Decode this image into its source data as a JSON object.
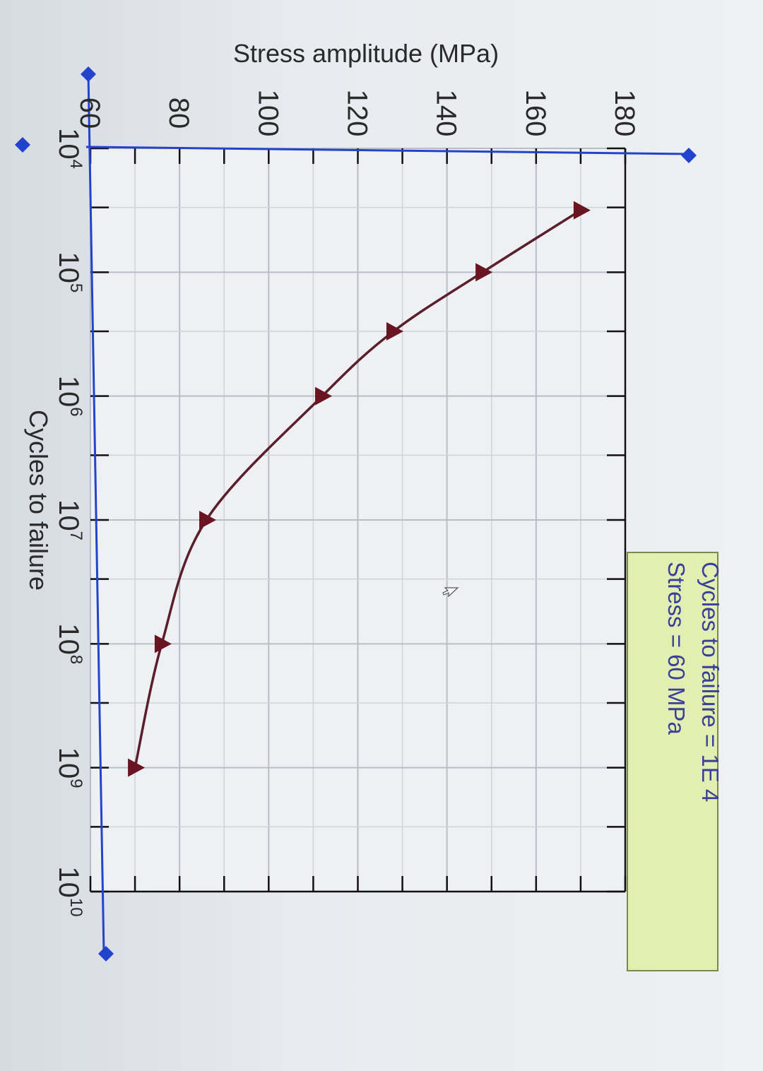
{
  "chart_data": {
    "type": "line",
    "title": "",
    "xlabel": "Cycles to failure",
    "ylabel": "Stress amplitude (MPa)",
    "x_scale": "log",
    "xlim": [
      10000,
      10000000000
    ],
    "ylim": [
      60,
      180
    ],
    "x_tick_labels": [
      {
        "base": "10",
        "exp": "4"
      },
      {
        "base": "10",
        "exp": "5"
      },
      {
        "base": "10",
        "exp": "6"
      },
      {
        "base": "10",
        "exp": "7"
      },
      {
        "base": "10",
        "exp": "8"
      },
      {
        "base": "10",
        "exp": "9"
      },
      {
        "base": "10",
        "exp": "10"
      }
    ],
    "y_tick_labels": [
      "60",
      "80",
      "100",
      "120",
      "140",
      "160",
      "180"
    ],
    "grid": true,
    "series": [
      {
        "points": [
          {
            "x": 31600,
            "y": 170
          },
          {
            "x": 100000,
            "y": 148
          },
          {
            "x": 300000,
            "y": 128
          },
          {
            "x": 1000000,
            "y": 112
          },
          {
            "x": 10000000,
            "y": 86
          },
          {
            "x": 100000000,
            "y": 76
          },
          {
            "x": 1000000000,
            "y": 70
          }
        ]
      }
    ]
  },
  "info_box": {
    "line1": "Cycles to failure = 1E 4",
    "line2": "Stress = 60 MPa"
  },
  "colors": {
    "axis": "#2244cc",
    "curve": "#5a1f2a",
    "marker": "#6a1422",
    "grid_minor": "#cfd4da",
    "grid_major": "#b8bec6",
    "info_bg": "#e3efb0",
    "info_border": "#7c8a48"
  }
}
